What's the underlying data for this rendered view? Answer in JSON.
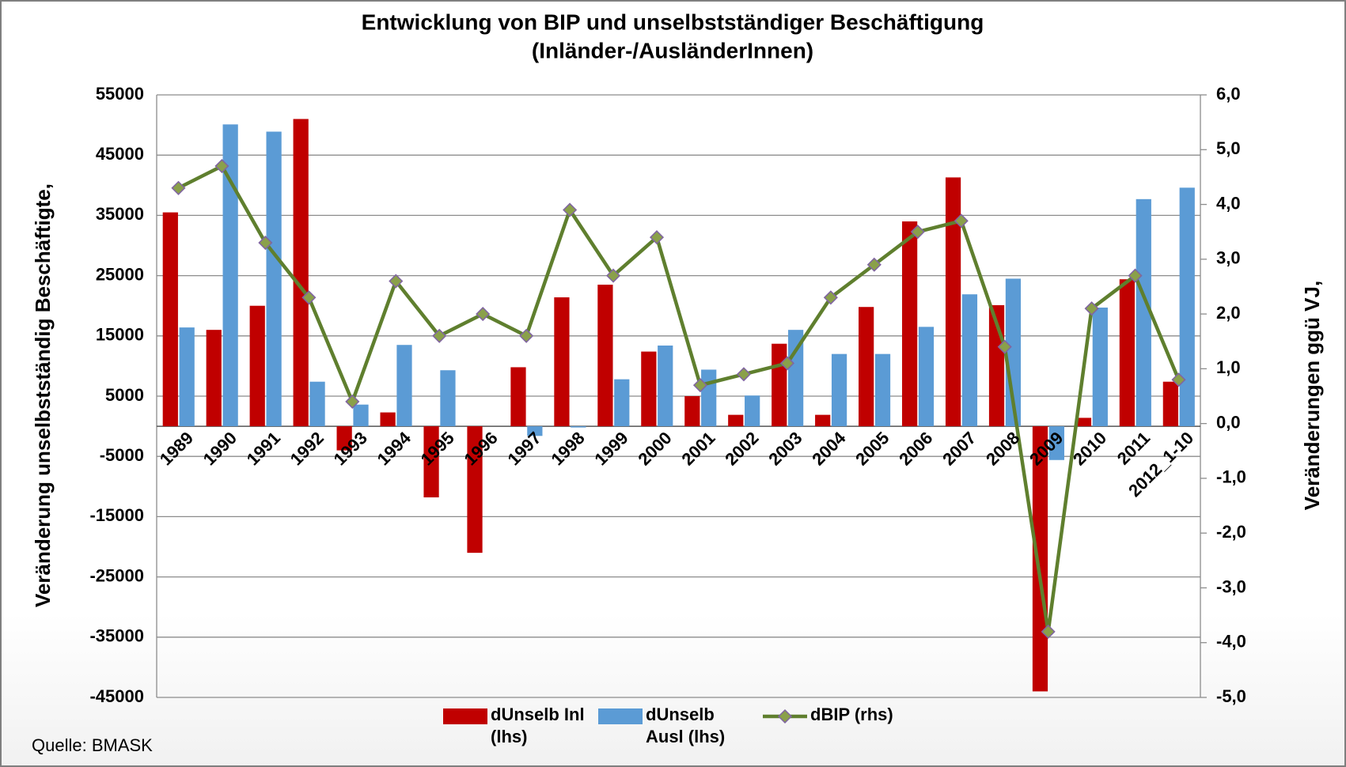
{
  "chart_data": {
    "type": "bar_line",
    "title": "Entwicklung von BIP und unselbstständiger Beschäftigung",
    "subtitle": "(Inländer-/AusländerInnen)",
    "y_label": "Veränderung unselbstständig Beschäftigte,",
    "y2_label": "Veränderungen ggü VJ,",
    "source": "Quelle: BMASK",
    "categories": [
      "1989",
      "1990",
      "1991",
      "1992",
      "1993",
      "1994",
      "1995",
      "1996",
      "1997",
      "1998",
      "1999",
      "2000",
      "2001",
      "2002",
      "2003",
      "2004",
      "2005",
      "2006",
      "2007",
      "2008",
      "2009",
      "2010",
      "2011",
      "2012_1-10"
    ],
    "series": [
      {
        "name": "dUnselb Inl (lhs)",
        "color": "#c00000",
        "kind": "bar",
        "values": [
          35500,
          16000,
          20000,
          51000,
          -4000,
          2300,
          -11800,
          -21000,
          9800,
          21400,
          23500,
          12400,
          5000,
          1900,
          13700,
          1900,
          19800,
          34000,
          41300,
          20100,
          -44000,
          1400,
          24400,
          7400
        ]
      },
      {
        "name": "dUnselb Ausl (lhs)",
        "color": "#5b9bd5",
        "kind": "bar",
        "values": [
          16400,
          50100,
          48900,
          7400,
          3600,
          13500,
          9300,
          0,
          -1600,
          -200,
          7800,
          13400,
          9400,
          5100,
          16000,
          12000,
          12000,
          16500,
          21900,
          24500,
          -5600,
          19700,
          37700,
          39600
        ]
      },
      {
        "name": "dBIP (rhs)",
        "color": "#5f7f2e",
        "kind": "line",
        "axis": "y2",
        "values": [
          4.3,
          4.7,
          3.3,
          2.3,
          0.4,
          2.6,
          1.6,
          2.0,
          1.6,
          3.9,
          2.7,
          3.4,
          0.7,
          0.9,
          1.1,
          2.3,
          2.9,
          3.5,
          3.7,
          1.4,
          -3.8,
          2.1,
          2.7,
          0.8
        ]
      }
    ],
    "ylim": [
      -45000,
      55000
    ],
    "yticks": [
      -45000,
      -35000,
      -25000,
      -15000,
      -5000,
      5000,
      15000,
      25000,
      35000,
      45000,
      55000
    ],
    "y2lim": [
      -5,
      6
    ],
    "y2ticks": [
      {
        "value": -5,
        "label": "-5,0"
      },
      {
        "value": -4,
        "label": "-4,0"
      },
      {
        "value": -3,
        "label": "-3,0"
      },
      {
        "value": -2,
        "label": "-2,0"
      },
      {
        "value": -1,
        "label": "-1,0"
      },
      {
        "value": 0,
        "label": "0,0"
      },
      {
        "value": 1,
        "label": "1,0"
      },
      {
        "value": 2,
        "label": "2,0"
      },
      {
        "value": 3,
        "label": "3,0"
      },
      {
        "value": 4,
        "label": "4,0"
      },
      {
        "value": 5,
        "label": "5,0"
      },
      {
        "value": 6,
        "label": "6,0"
      }
    ],
    "grid": true
  }
}
